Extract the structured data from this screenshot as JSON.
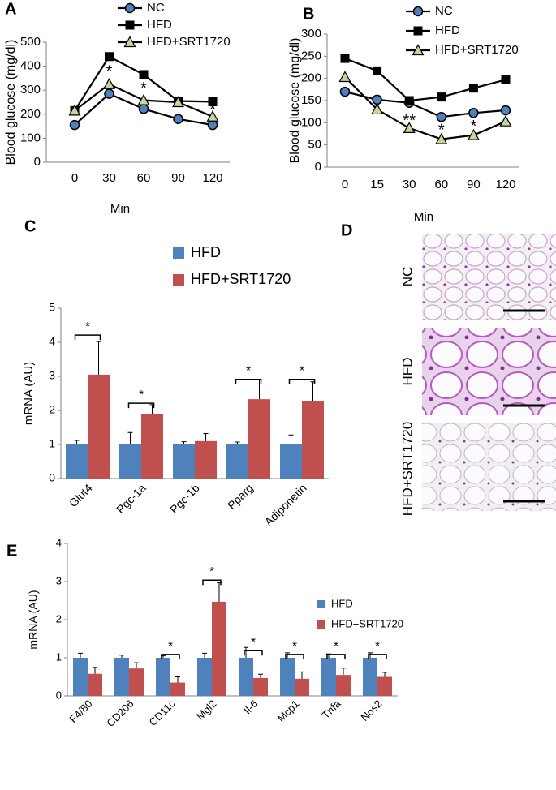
{
  "chart_data": [
    {
      "panel": "A",
      "type": "line",
      "y_label": "Blood glucose (mg/dl)",
      "x_label": "Min",
      "categories": [
        "0",
        "30",
        "60",
        "90",
        "120"
      ],
      "ylim": [
        0,
        500
      ],
      "yticks": [
        0,
        100,
        200,
        300,
        400,
        500
      ],
      "series": [
        {
          "name": "NC",
          "color": "#4f81bd",
          "marker": "circle",
          "values": [
            155,
            285,
            222,
            180,
            155
          ]
        },
        {
          "name": "HFD",
          "color": "#000000",
          "marker": "square",
          "values": [
            215,
            440,
            365,
            255,
            252
          ]
        },
        {
          "name": "HFD+SRT1720",
          "color": "#c3d69b",
          "marker": "triangle",
          "values": [
            215,
            325,
            258,
            250,
            190
          ]
        }
      ],
      "annotations": [
        {
          "text": "*",
          "x": "30",
          "y": 375
        },
        {
          "text": "*",
          "x": "60",
          "y": 305
        },
        {
          "text": "*",
          "x": "120",
          "y": 215
        }
      ]
    },
    {
      "panel": "B",
      "type": "line",
      "y_label": "Blood glucose (mg/dl)",
      "x_label": "Min",
      "categories": [
        "0",
        "15",
        "30",
        "60",
        "90",
        "120"
      ],
      "ylim": [
        0,
        300
      ],
      "yticks": [
        0,
        50,
        100,
        150,
        200,
        250,
        300
      ],
      "series": [
        {
          "name": "NC",
          "color": "#4f81bd",
          "marker": "circle",
          "values": [
            170,
            152,
            145,
            113,
            122,
            128
          ]
        },
        {
          "name": "HFD",
          "color": "#000000",
          "marker": "square",
          "values": [
            245,
            217,
            150,
            158,
            178,
            197
          ]
        },
        {
          "name": "HFD+SRT1720",
          "color": "#c3d69b",
          "marker": "triangle",
          "values": [
            203,
            130,
            88,
            63,
            72,
            103
          ]
        }
      ],
      "annotations": [
        {
          "text": "**",
          "x": "30",
          "y": 103
        },
        {
          "text": "*",
          "x": "60",
          "y": 82
        },
        {
          "text": "*",
          "x": "90",
          "y": 90
        }
      ]
    },
    {
      "panel": "C",
      "type": "bar",
      "y_label": "mRNA (AU)",
      "categories": [
        "Glut4",
        "Pgc-1a",
        "Pgc-1b",
        "Pparg",
        "Adiponetin"
      ],
      "ylim": [
        0,
        5
      ],
      "yticks": [
        0,
        1,
        2,
        3,
        4,
        5
      ],
      "series": [
        {
          "name": "HFD",
          "color": "#4f81bd",
          "values": [
            1,
            1,
            1,
            1,
            1
          ],
          "errors": [
            0.12,
            0.35,
            0.08,
            0.07,
            0.28
          ]
        },
        {
          "name": "HFD+SRT1720",
          "color": "#c0504d",
          "values": [
            3.05,
            1.9,
            1.1,
            2.33,
            2.27
          ],
          "errors": [
            0.97,
            0.27,
            0.22,
            0.57,
            0.57
          ]
        }
      ],
      "annotations": [
        {
          "text": "*",
          "x": "Glut4",
          "y": 4.45
        },
        {
          "text": "*",
          "x": "Pgc-1a",
          "y": 2.45
        },
        {
          "text": "*",
          "x": "Pparg",
          "y": 3.15
        },
        {
          "text": "*",
          "x": "Adiponetin",
          "y": 3.15
        }
      ]
    },
    {
      "panel": "E",
      "type": "bar",
      "y_label": "mRNA (AU)",
      "categories": [
        "F4/80",
        "CD206",
        "CD11c",
        "Mgl2",
        "Il-6",
        "Mcp1",
        "Tnfa",
        "Nos2"
      ],
      "ylim": [
        0,
        4
      ],
      "yticks": [
        0,
        1,
        2,
        3,
        4
      ],
      "series": [
        {
          "name": "HFD",
          "color": "#4f81bd",
          "values": [
            1,
            1,
            1,
            1,
            1,
            1,
            1,
            1
          ],
          "errors": [
            0.12,
            0.07,
            0.05,
            0.12,
            0.27,
            0.13,
            0.1,
            0.13
          ]
        },
        {
          "name": "HFD+SRT1720",
          "color": "#c0504d",
          "values": [
            0.58,
            0.72,
            0.35,
            2.47,
            0.47,
            0.45,
            0.55,
            0.5
          ],
          "errors": [
            0.17,
            0.15,
            0.15,
            0.5,
            0.1,
            0.18,
            0.18,
            0.12
          ]
        }
      ],
      "annotations": [
        {
          "text": "*",
          "x": "CD11c",
          "y": 1.3
        },
        {
          "text": "*",
          "x": "Mgl2",
          "y": 3.25
        },
        {
          "text": "*",
          "x": "Il-6",
          "y": 1.4
        },
        {
          "text": "*",
          "x": "Mcp1",
          "y": 1.3
        },
        {
          "text": "*",
          "x": "Tnfa",
          "y": 1.3
        },
        {
          "text": "*",
          "x": "Nos2",
          "y": 1.3
        }
      ]
    }
  ],
  "panel_d": {
    "panel": "D",
    "images": [
      "NC",
      "HFD",
      "HFD+SRT1720"
    ]
  }
}
